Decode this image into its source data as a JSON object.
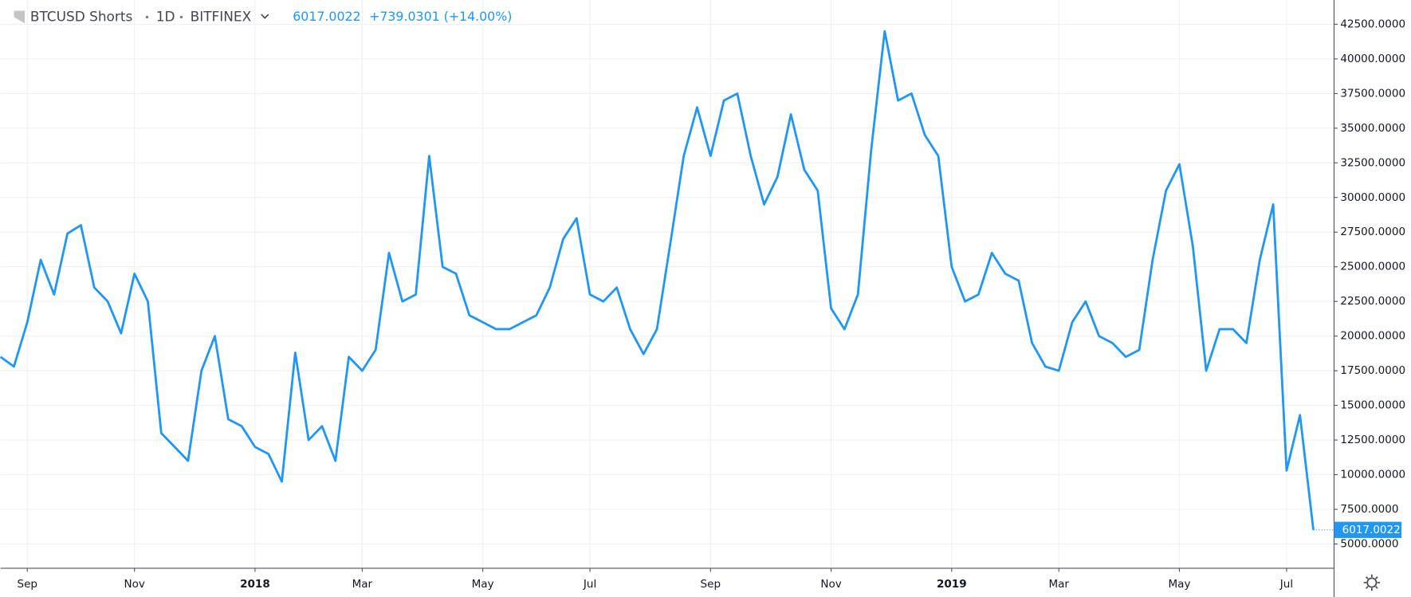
{
  "chart_data": {
    "type": "line",
    "symbol": "BTCUSD Shorts",
    "interval": "1D",
    "exchange": "BITFINEX",
    "change": "+739.0301 (+14.00%)",
    "categories": [
      null,
      null,
      "Sep",
      null,
      null,
      null,
      null,
      null,
      null,
      null,
      "Nov",
      null,
      null,
      null,
      null,
      null,
      null,
      null,
      null,
      "2018",
      null,
      null,
      null,
      null,
      null,
      null,
      null,
      "Mar",
      null,
      null,
      null,
      null,
      null,
      null,
      null,
      null,
      "May",
      null,
      null,
      null,
      null,
      null,
      null,
      null,
      "Jul",
      null,
      null,
      null,
      null,
      null,
      null,
      null,
      null,
      "Sep",
      null,
      null,
      null,
      null,
      null,
      null,
      null,
      null,
      "Nov",
      null,
      null,
      null,
      null,
      null,
      null,
      null,
      null,
      "2019",
      null,
      null,
      null,
      null,
      null,
      null,
      null,
      "Mar",
      null,
      null,
      null,
      null,
      null,
      null,
      null,
      null,
      "May",
      null,
      null,
      null,
      null,
      null,
      null,
      null,
      "Jul",
      null,
      null
    ],
    "series": [
      {
        "name": "BTCUSD Shorts",
        "color": "#2196f3",
        "values": [
          18500,
          17800,
          21000,
          25500,
          23000,
          27400,
          28000,
          23500,
          22500,
          20200,
          24500,
          22500,
          13000,
          12000,
          11000,
          17500,
          20000,
          14000,
          13500,
          12000,
          11500,
          9500,
          18800,
          12500,
          13500,
          11000,
          18500,
          17500,
          19000,
          26000,
          22500,
          23000,
          33000,
          25000,
          24500,
          21500,
          21000,
          20500,
          20500,
          21000,
          21500,
          23500,
          27000,
          28500,
          23000,
          22500,
          23500,
          20500,
          18700,
          20500,
          26700,
          33000,
          36500,
          33000,
          37000,
          37500,
          33000,
          29500,
          31500,
          36000,
          32000,
          30500,
          22000,
          20500,
          23000,
          33500,
          42000,
          37000,
          37500,
          34500,
          33000,
          25000,
          22500,
          23000,
          26000,
          24500,
          24000,
          19500,
          17800,
          17500,
          21000,
          22500,
          20000,
          19500,
          18500,
          19000,
          25500,
          30500,
          32400,
          26500,
          17500,
          20500,
          20500,
          19500,
          25500,
          29500,
          10300,
          14300,
          6017.0022
        ]
      }
    ],
    "ylim": [
      3250,
      44250
    ],
    "yticks": [
      {
        "value": 5000,
        "label": "5000.0000"
      },
      {
        "value": 7500,
        "label": "7500.0000"
      },
      {
        "value": 10000,
        "label": "10000.0000"
      },
      {
        "value": 12500,
        "label": "12500.0000"
      },
      {
        "value": 15000,
        "label": "15000.0000"
      },
      {
        "value": 17500,
        "label": "17500.0000"
      },
      {
        "value": 20000,
        "label": "20000.0000"
      },
      {
        "value": 22500,
        "label": "22500.0000"
      },
      {
        "value": 25000,
        "label": "25000.0000"
      },
      {
        "value": 27500,
        "label": "27500.0000"
      },
      {
        "value": 30000,
        "label": "30000.0000"
      },
      {
        "value": 32500,
        "label": "32500.0000"
      },
      {
        "value": 35000,
        "label": "35000.0000"
      },
      {
        "value": 37500,
        "label": "37500.0000"
      },
      {
        "value": 40000,
        "label": "40000.0000"
      },
      {
        "value": 42500,
        "label": "42500.0000"
      }
    ],
    "grid": true
  }
}
